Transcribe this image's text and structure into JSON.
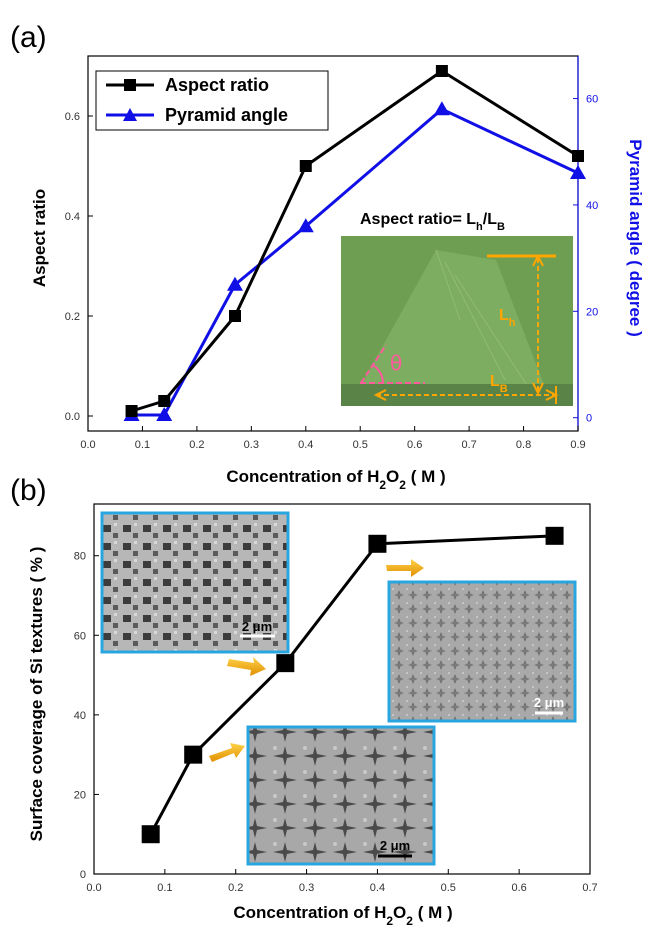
{
  "chart_data": [
    {
      "panel": "(a)",
      "type": "line",
      "x": [
        0.08,
        0.14,
        0.27,
        0.4,
        0.65,
        0.9
      ],
      "xlim": [
        0.0,
        0.9
      ],
      "xticks": [
        "0.0",
        "0.1",
        "0.2",
        "0.3",
        "0.4",
        "0.5",
        "0.6",
        "0.7",
        "0.8",
        "0.9"
      ],
      "xlabel": "Concentration of H2O2 ( M )",
      "ylabel": "Aspect ratio",
      "ylim": [
        -0.03,
        0.72
      ],
      "yticks": [
        "0.0",
        "0.2",
        "0.4",
        "0.6"
      ],
      "y2label": "Pyramid angle ( degree )",
      "y2lim": [
        -2.5,
        68
      ],
      "y2ticks": [
        "0",
        "20",
        "40",
        "60"
      ],
      "legend_position": "top-left",
      "series": [
        {
          "name": "Aspect ratio",
          "axis": "left",
          "marker": "square",
          "color": "#000000",
          "values": [
            0.01,
            0.03,
            0.2,
            0.5,
            0.69,
            0.52
          ]
        },
        {
          "name": "Pyramid angle",
          "axis": "right",
          "marker": "triangle",
          "color": "#1010e6",
          "values": [
            0.5,
            0.5,
            25,
            36,
            58,
            46
          ]
        }
      ],
      "inset": {
        "title": "Aspect ratio= Lh/LB",
        "labels": [
          "θ",
          "Lh",
          "LB"
        ],
        "colors": {
          "background": "#6e9e52",
          "face": "#7bab5f",
          "base": "#5a8447",
          "guide": "#ffa500",
          "angle": "#ff5a9b"
        }
      }
    },
    {
      "panel": "(b)",
      "type": "line",
      "x": [
        0.08,
        0.14,
        0.27,
        0.4,
        0.65
      ],
      "values": [
        10,
        30,
        53,
        83,
        85
      ],
      "xlim": [
        0.0,
        0.7
      ],
      "xticks": [
        "0.0",
        "0.1",
        "0.2",
        "0.3",
        "0.4",
        "0.5",
        "0.6",
        "0.7"
      ],
      "xlabel": "Concentration of H2O2 ( M )",
      "ylabel": "Surface coverage of Si textures ( % )",
      "ylim": [
        0,
        93
      ],
      "yticks": [
        "0",
        "20",
        "40",
        "60",
        "80"
      ],
      "marker": "square",
      "color": "#000000",
      "insets": [
        {
          "scale_label": "2 μm",
          "pattern": "square-pits",
          "border": "#29a6e0"
        },
        {
          "scale_label": "2 μm",
          "pattern": "uniform-pyramids",
          "border": "#29a6e0"
        },
        {
          "scale_label": "2 μm",
          "pattern": "star-clusters",
          "border": "#29a6e0"
        }
      ],
      "arrow_color": "#f2a812"
    }
  ]
}
